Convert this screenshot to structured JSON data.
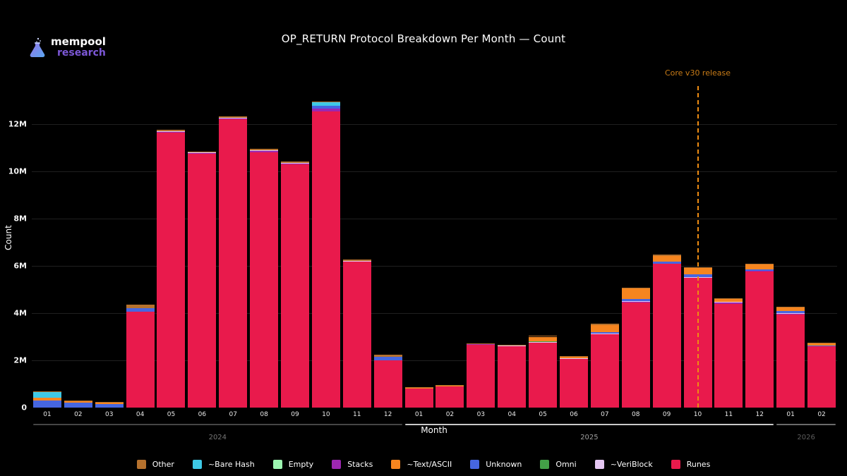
{
  "logo": {
    "name": "mempool",
    "sub": "research"
  },
  "header": {
    "title": "OP_RETURN Protocol Breakdown Per Month — Count"
  },
  "axes": {
    "y_label": "Count",
    "x_label": "Month"
  },
  "annotation": {
    "label": "Core v30 release",
    "month_index": 21,
    "color": "#ef8c12"
  },
  "chart_data": {
    "type": "bar",
    "stacked": true,
    "title": "OP_RETURN Protocol Breakdown Per Month — Count",
    "xlabel": "Month",
    "ylabel": "Count",
    "unit": "count (millions)",
    "ylim_m": [
      0,
      13.7
    ],
    "grid": "horizontal",
    "legend_position": "bottom",
    "y_axis": {
      "tick_values_m": [
        0,
        2,
        4,
        6,
        8,
        10,
        12
      ],
      "tick_labels": [
        "0",
        "2M",
        "4M",
        "6M",
        "8M",
        "10M",
        "12M"
      ]
    },
    "categories": [
      "01",
      "02",
      "03",
      "04",
      "05",
      "06",
      "07",
      "08",
      "09",
      "10",
      "11",
      "12",
      "01",
      "02",
      "03",
      "04",
      "05",
      "06",
      "07",
      "08",
      "09",
      "10",
      "11",
      "12",
      "01",
      "02"
    ],
    "year_groups": [
      {
        "label": "2024",
        "start": 0,
        "end": 11
      },
      {
        "label": "2025",
        "start": 12,
        "end": 23
      },
      {
        "label": "2026",
        "start": 24,
        "end": 25
      }
    ],
    "series": [
      {
        "name": "Runes",
        "color": "#e91a4c",
        "values_m": [
          0,
          0,
          0,
          4.05,
          11.65,
          10.75,
          12.2,
          10.8,
          10.3,
          12.55,
          6.2,
          2.0,
          0.8,
          0.9,
          2.65,
          2.6,
          2.75,
          2.05,
          3.1,
          4.45,
          6.1,
          5.5,
          4.4,
          5.75,
          3.95,
          2.6
        ]
      },
      {
        "name": "Stacks",
        "color": "#9c27b0",
        "values_m": [
          0,
          0,
          0,
          0,
          0.04,
          0.03,
          0.04,
          0.06,
          0.04,
          0.1,
          0,
          0,
          0,
          0,
          0.06,
          0,
          0,
          0,
          0,
          0.03,
          0,
          0,
          0.06,
          0.05,
          0.03,
          0
        ]
      },
      {
        "name": "~VeriBlock",
        "color": "#e4c6f1",
        "values_m": [
          0,
          0,
          0,
          0,
          0.02,
          0.02,
          0.02,
          0.04,
          0.03,
          0,
          0.02,
          0,
          0,
          0,
          0,
          0.05,
          0.04,
          0.04,
          0.04,
          0.03,
          0,
          0.03,
          0.02,
          0,
          0.02,
          0
        ]
      },
      {
        "name": "Omni",
        "color": "#43a047",
        "values_m": [
          0,
          0,
          0,
          0,
          0,
          0,
          0,
          0,
          0,
          0,
          0,
          0,
          0,
          0,
          0,
          0,
          0.01,
          0,
          0,
          0,
          0,
          0,
          0,
          0,
          0,
          0
        ]
      },
      {
        "name": "Unknown",
        "color": "#4666e0",
        "values_m": [
          0.3,
          0.22,
          0.15,
          0.15,
          0,
          0,
          0,
          0,
          0,
          0.12,
          0,
          0.15,
          0,
          0,
          0,
          0,
          0,
          0,
          0.06,
          0.08,
          0.08,
          0.12,
          0,
          0.06,
          0.1,
          0.03
        ]
      },
      {
        "name": "~Text/ASCII",
        "color": "#f6851f",
        "values_m": [
          0.13,
          0.07,
          0.06,
          0,
          0,
          0,
          0,
          0,
          0,
          0,
          0,
          0,
          0.04,
          0.04,
          0,
          0,
          0.2,
          0.07,
          0.3,
          0.45,
          0.25,
          0.25,
          0.12,
          0.2,
          0.15,
          0.1
        ]
      },
      {
        "name": "Empty",
        "color": "#9cf5b0",
        "values_m": [
          0,
          0,
          0,
          0,
          0,
          0,
          0,
          0,
          0,
          0,
          0,
          0,
          0,
          0,
          0,
          0,
          0.03,
          0,
          0,
          0,
          0,
          0,
          0,
          0,
          0,
          0
        ]
      },
      {
        "name": "~Bare Hash",
        "color": "#3ec9e6",
        "values_m": [
          0.25,
          0,
          0,
          0,
          0,
          0,
          0,
          0,
          0,
          0.18,
          0,
          0,
          0,
          0,
          0,
          0,
          0,
          0,
          0,
          0,
          0,
          0,
          0,
          0,
          0,
          0
        ]
      },
      {
        "name": "Other",
        "color": "#b5712d",
        "values_m": [
          0.02,
          0.02,
          0.02,
          0.15,
          0.04,
          0.03,
          0.06,
          0.05,
          0.04,
          0.02,
          0.06,
          0.1,
          0.02,
          0.02,
          0.02,
          0.02,
          0.02,
          0.03,
          0.05,
          0.03,
          0.05,
          0.04,
          0.03,
          0.03,
          0.03,
          0.03
        ]
      }
    ],
    "legend_order": [
      "Other",
      "~Bare Hash",
      "Empty",
      "Stacks",
      "~Text/ASCII",
      "Unknown",
      "Omni",
      "~VeriBlock",
      "Runes"
    ]
  }
}
